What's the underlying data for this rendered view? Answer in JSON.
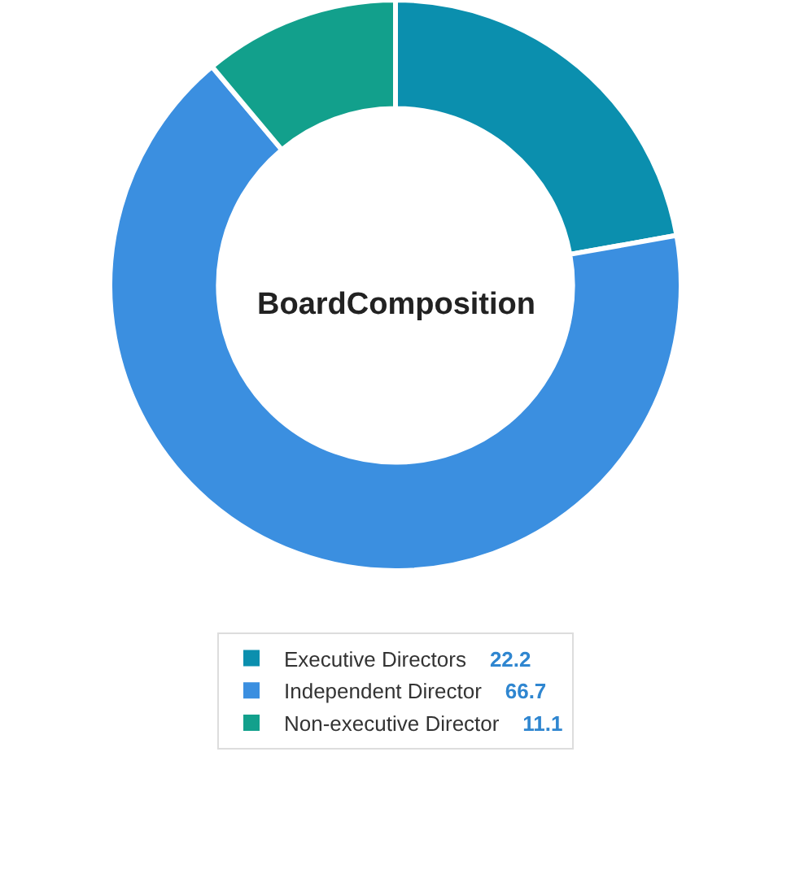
{
  "chart_data": {
    "type": "donut",
    "title": "BoardComposition",
    "categories": [
      "Executive Directors",
      "Independent Director",
      "Non-executive Director"
    ],
    "values": [
      22.2,
      66.7,
      11.1
    ],
    "colors": [
      "#0b8fae",
      "#3b8fe0",
      "#12a08c"
    ],
    "data_labels": true,
    "legend": "bottom"
  }
}
